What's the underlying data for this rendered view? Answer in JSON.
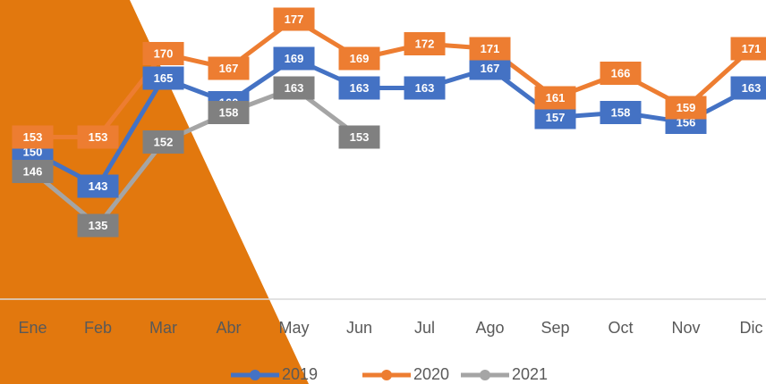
{
  "chart_data": {
    "type": "line",
    "categories": [
      "Ene",
      "Feb",
      "Mar",
      "Abr",
      "May",
      "Jun",
      "Jul",
      "Ago",
      "Sep",
      "Oct",
      "Nov",
      "Dic"
    ],
    "series": [
      {
        "name": "2019",
        "color": "#4472c4",
        "label_color": "#4472c4",
        "values": [
          150,
          143,
          165,
          160,
          169,
          163,
          163,
          167,
          157,
          158,
          156,
          163
        ]
      },
      {
        "name": "2020",
        "color": "#ed7d31",
        "label_color": "#ed7d31",
        "values": [
          153,
          153,
          170,
          167,
          177,
          169,
          172,
          171,
          161,
          166,
          159,
          171
        ]
      },
      {
        "name": "2021",
        "color": "#a5a5a5",
        "label_color": "#808080",
        "values": [
          146,
          135,
          152,
          158,
          163,
          153,
          null,
          null,
          null,
          null,
          null,
          null
        ]
      }
    ],
    "ylim": [
      120,
      180
    ],
    "legend": "bottom"
  }
}
